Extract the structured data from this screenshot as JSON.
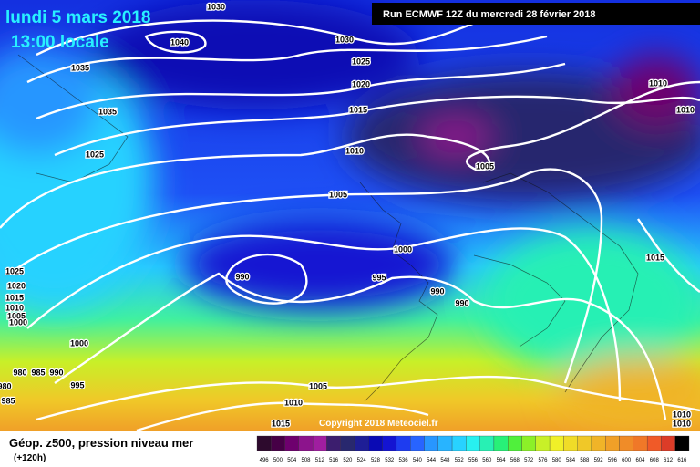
{
  "header": {
    "date": "lundi 5 mars 2018",
    "time": "13:00 locale",
    "run": "Run ECMWF 12Z du mercredi 28 février 2018"
  },
  "copyright": "Copyright 2018 Meteociel.fr",
  "footer": {
    "title": "Géop. z500, pression niveau mer",
    "lead": "(+120h)"
  },
  "isobar_labels": [
    "1030",
    "1040",
    "1030",
    "1035",
    "1025",
    "1020",
    "1035",
    "1015",
    "1010",
    "1010",
    "1010",
    "1005",
    "1025",
    "1005",
    "1000",
    "990",
    "995",
    "990",
    "990",
    "1015",
    "1025",
    "1020",
    "1015",
    "1010",
    "1005",
    "1000",
    "1000",
    "980",
    "985",
    "990",
    "980",
    "995",
    "985",
    "1005",
    "1010",
    "1015",
    "1010",
    "1010"
  ],
  "scale": {
    "values": [
      496,
      500,
      504,
      508,
      512,
      516,
      520,
      524,
      528,
      532,
      536,
      540,
      544,
      548,
      552,
      556,
      560,
      564,
      568,
      572,
      576,
      580,
      584,
      588,
      592,
      596,
      600,
      604,
      608,
      612,
      616
    ],
    "colors": [
      "#2d0a2d",
      "#460046",
      "#6e006e",
      "#8c148c",
      "#a01ea0",
      "#3c1e6e",
      "#28286e",
      "#1e1e96",
      "#0a0ab4",
      "#1414d2",
      "#1e3cf0",
      "#2864ff",
      "#2896ff",
      "#28b4ff",
      "#28d2ff",
      "#28f0f0",
      "#28f0b4",
      "#28f078",
      "#50f03c",
      "#8cf028",
      "#c8f028",
      "#f0f028",
      "#f0dc28",
      "#f0c828",
      "#f0b428",
      "#f0a028",
      "#f08c28",
      "#f07828",
      "#f05a28",
      "#dc3c28",
      "#000000"
    ]
  }
}
